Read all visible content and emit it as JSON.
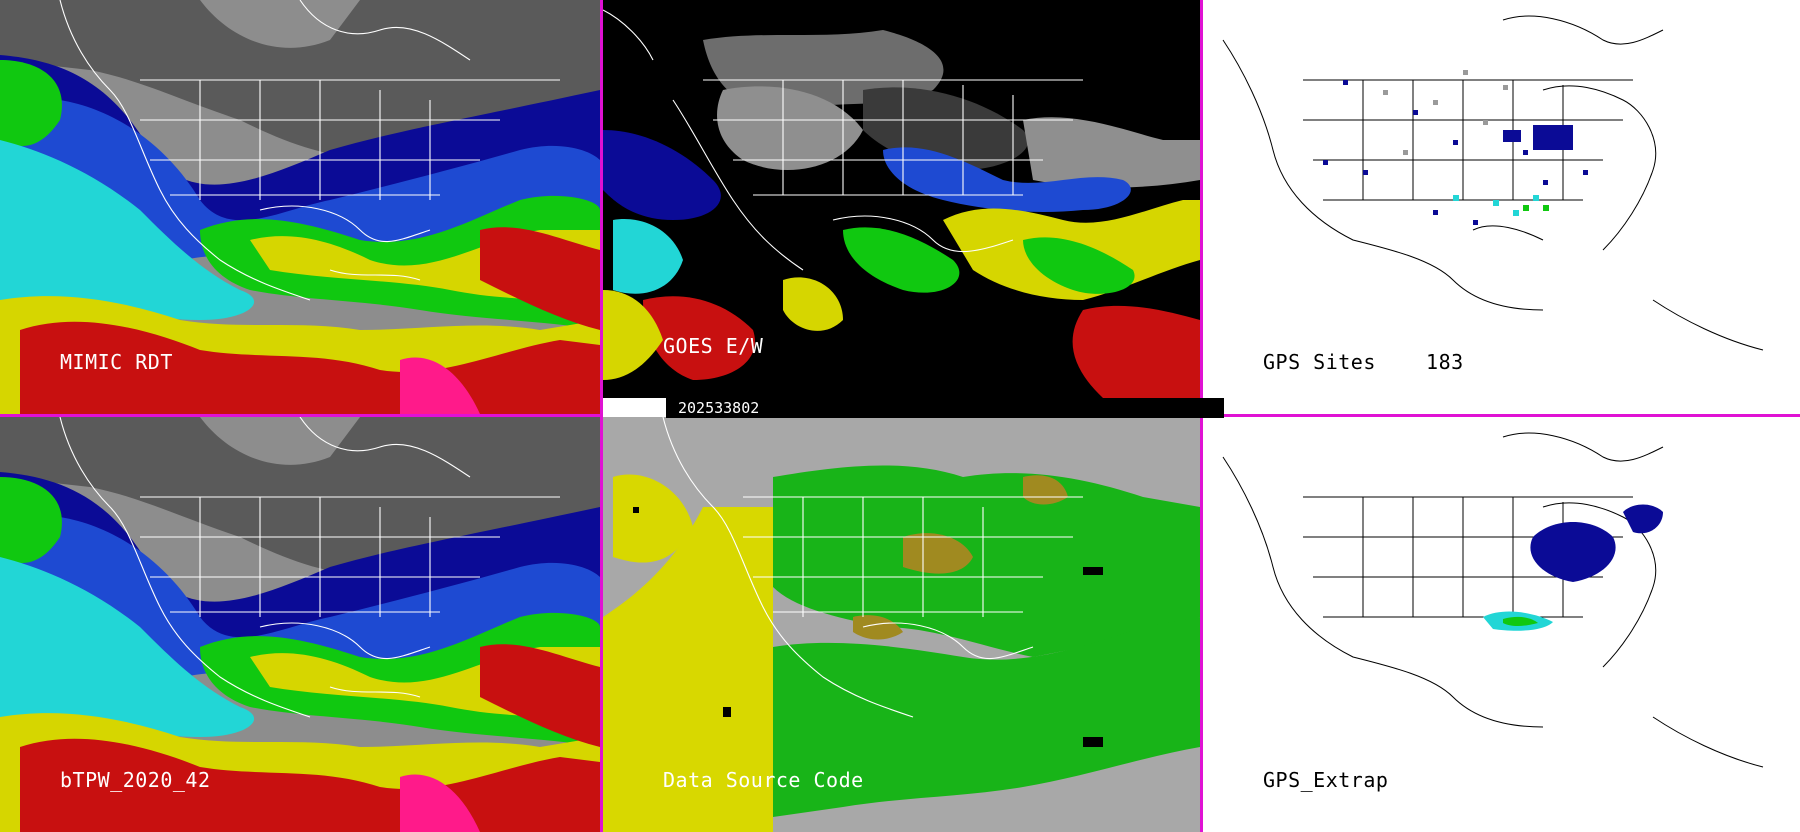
{
  "panels": {
    "mimic": {
      "label": "MIMIC RDT"
    },
    "goes": {
      "label": "GOES E/W"
    },
    "gps_sites": {
      "label": "GPS Sites",
      "count": "183"
    },
    "btpw": {
      "label": "bTPW_2020_42"
    },
    "data_source": {
      "label": "Data Source Code"
    },
    "gps_extrap": {
      "label": "GPS_Extrap"
    }
  },
  "timestamp": "202533802",
  "colors": {
    "divider": "#e011d4",
    "tpw_scale": [
      "#3a3a3a",
      "#8a8a8a",
      "#0a0a9a",
      "#1545d0",
      "#22d6d6",
      "#10c810",
      "#88d41e",
      "#d6d600",
      "#c8a000",
      "#c81010",
      "#ff1a8a"
    ],
    "data_source_yellow": "#d8d800",
    "data_source_green": "#18b418",
    "data_source_gray": "#a8a8a8",
    "data_source_brown": "#a08a20"
  }
}
